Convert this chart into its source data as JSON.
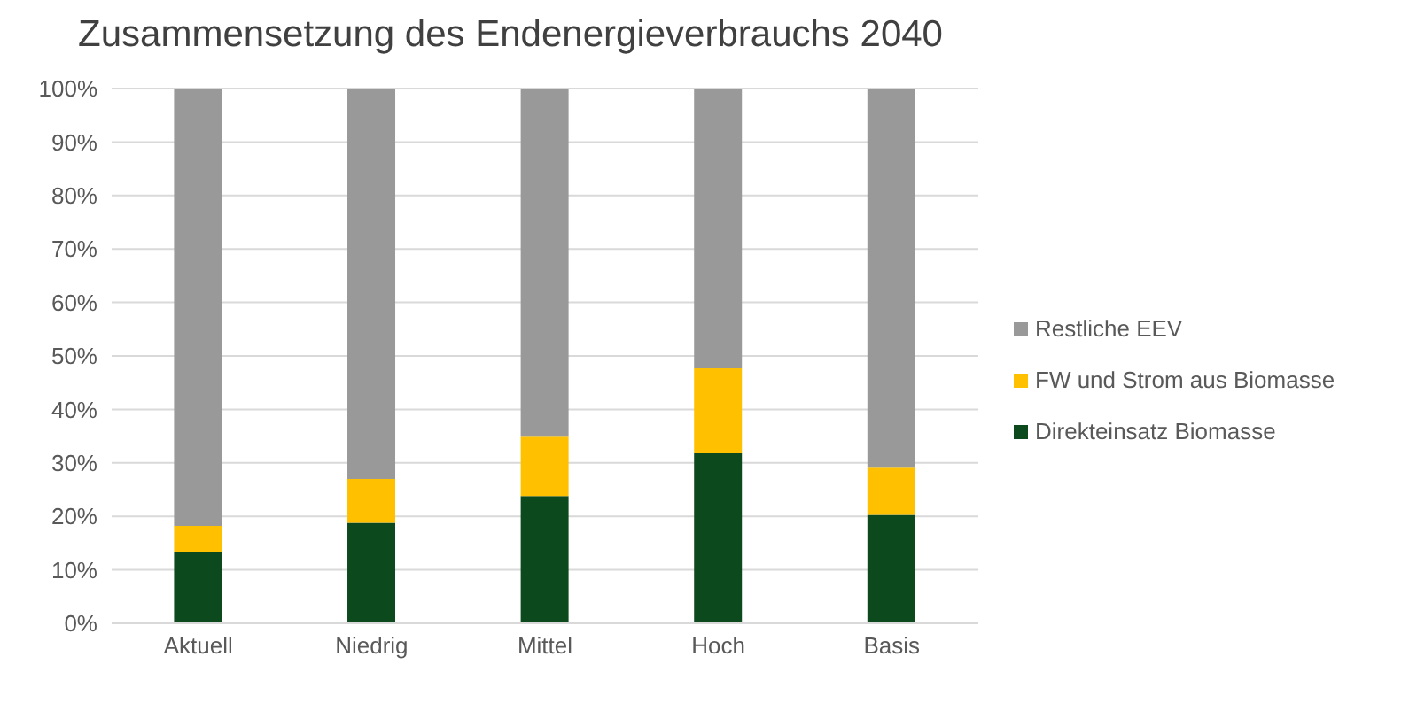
{
  "chart_data": {
    "type": "bar",
    "title": "Zusammensetzung des Endenergieverbrauchs 2040",
    "categories": [
      "Aktuell",
      "Niedrig",
      "Mittel",
      "Hoch",
      "Basis"
    ],
    "stacked": true,
    "series": [
      {
        "name": "Direkteinsatz Biomasse",
        "color": "#0c4a1e",
        "values": [
          13.3,
          18.8,
          23.8,
          31.8,
          20.3
        ]
      },
      {
        "name": "FW und Strom aus Biomasse",
        "color": "#ffc000",
        "values": [
          4.9,
          8.2,
          11.1,
          15.9,
          8.8
        ]
      },
      {
        "name": "Restliche EEV",
        "color": "#999999",
        "values": [
          81.8,
          73.0,
          65.1,
          52.3,
          70.9
        ]
      }
    ],
    "ylim": [
      0,
      100
    ],
    "yticks": [
      {
        "value": 0,
        "label": "0%"
      },
      {
        "value": 10,
        "label": "10%"
      },
      {
        "value": 20,
        "label": "20%"
      },
      {
        "value": 30,
        "label": "30%"
      },
      {
        "value": 40,
        "label": "40%"
      },
      {
        "value": 50,
        "label": "50%"
      },
      {
        "value": 60,
        "label": "60%"
      },
      {
        "value": 70,
        "label": "70%"
      },
      {
        "value": 80,
        "label": "80%"
      },
      {
        "value": 90,
        "label": "90%"
      },
      {
        "value": 100,
        "label": "100%"
      }
    ],
    "grid": "y",
    "legend": "right"
  }
}
